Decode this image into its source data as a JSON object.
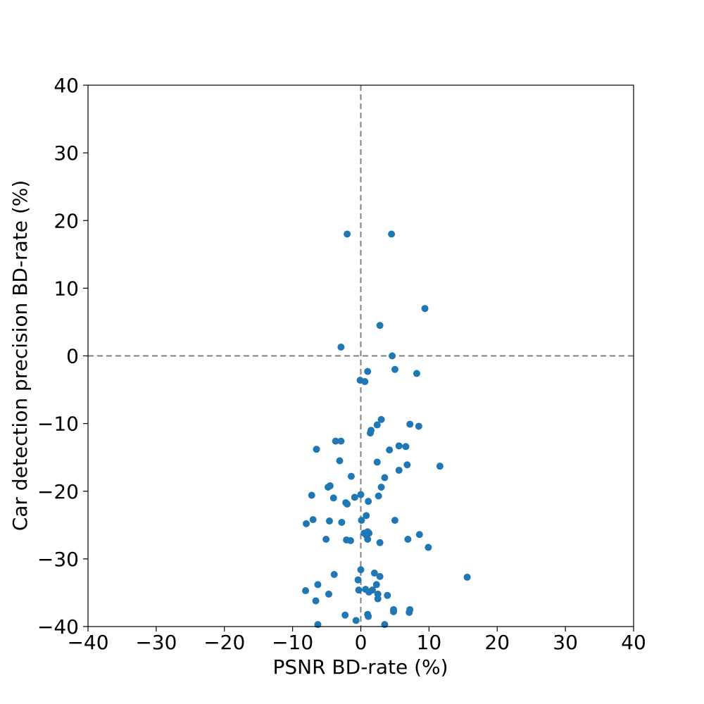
{
  "chart_data": {
    "type": "scatter",
    "title": "",
    "xlabel": "PSNR BD-rate (%)",
    "ylabel": "Car detection precision BD-rate (%)",
    "xlim": [
      -40,
      40
    ],
    "ylim": [
      -40,
      40
    ],
    "xticks": [
      -40,
      -30,
      -20,
      -10,
      0,
      10,
      20,
      30,
      40
    ],
    "yticks": [
      -40,
      -30,
      -20,
      -10,
      0,
      10,
      20,
      30,
      40
    ],
    "xtick_labels": [
      "−40",
      "−30",
      "−20",
      "−10",
      "0",
      "10",
      "20",
      "30",
      "40"
    ],
    "ytick_labels": [
      "−40",
      "−30",
      "−20",
      "−10",
      "0",
      "10",
      "20",
      "30",
      "40"
    ],
    "grid": false,
    "reference_lines": {
      "x": 0,
      "y": 0,
      "style": "dashed",
      "color": "#808080"
    },
    "marker_color": "#1f77b4",
    "points": [
      {
        "x": -2.0,
        "y": 18.0
      },
      {
        "x": 4.5,
        "y": 18.0
      },
      {
        "x": 9.4,
        "y": 7.0
      },
      {
        "x": 2.8,
        "y": 4.5
      },
      {
        "x": -2.9,
        "y": 1.3
      },
      {
        "x": 4.6,
        "y": 0.0
      },
      {
        "x": 1.0,
        "y": -2.3
      },
      {
        "x": 5.0,
        "y": -2.0
      },
      {
        "x": 8.2,
        "y": -2.6
      },
      {
        "x": -0.1,
        "y": -3.6
      },
      {
        "x": 0.6,
        "y": -3.8
      },
      {
        "x": 3.0,
        "y": -9.4
      },
      {
        "x": 2.4,
        "y": -10.2
      },
      {
        "x": 7.2,
        "y": -10.1
      },
      {
        "x": 8.5,
        "y": -10.4
      },
      {
        "x": 1.5,
        "y": -11.0
      },
      {
        "x": 1.4,
        "y": -11.4
      },
      {
        "x": -3.7,
        "y": -12.6
      },
      {
        "x": -2.9,
        "y": -12.6
      },
      {
        "x": 5.6,
        "y": -13.3
      },
      {
        "x": 6.6,
        "y": -13.4
      },
      {
        "x": 4.2,
        "y": -13.9
      },
      {
        "x": -6.5,
        "y": -13.8
      },
      {
        "x": -3.1,
        "y": -15.5
      },
      {
        "x": 2.4,
        "y": -15.7
      },
      {
        "x": 6.8,
        "y": -16.1
      },
      {
        "x": 11.6,
        "y": -16.3
      },
      {
        "x": 5.6,
        "y": -16.9
      },
      {
        "x": 3.5,
        "y": -18.0
      },
      {
        "x": -1.4,
        "y": -17.8
      },
      {
        "x": -4.5,
        "y": -19.2
      },
      {
        "x": -4.8,
        "y": -19.4
      },
      {
        "x": 3.0,
        "y": -19.4
      },
      {
        "x": -7.2,
        "y": -20.6
      },
      {
        "x": 0.0,
        "y": -20.5
      },
      {
        "x": -0.9,
        "y": -20.9
      },
      {
        "x": -4.0,
        "y": -21.0
      },
      {
        "x": 2.6,
        "y": -20.7
      },
      {
        "x": 1.1,
        "y": -21.5
      },
      {
        "x": -2.2,
        "y": -21.7
      },
      {
        "x": -2.0,
        "y": -21.9
      },
      {
        "x": 0.8,
        "y": -23.6
      },
      {
        "x": -7.0,
        "y": -24.2
      },
      {
        "x": -8.0,
        "y": -24.8
      },
      {
        "x": -4.6,
        "y": -24.4
      },
      {
        "x": -2.8,
        "y": -24.6
      },
      {
        "x": 0.1,
        "y": -24.3
      },
      {
        "x": 5.0,
        "y": -24.3
      },
      {
        "x": 0.5,
        "y": -26.2
      },
      {
        "x": 1.0,
        "y": -26.0
      },
      {
        "x": 1.2,
        "y": -26.2
      },
      {
        "x": 0.8,
        "y": -26.5
      },
      {
        "x": 8.6,
        "y": -26.4
      },
      {
        "x": -5.1,
        "y": -27.1
      },
      {
        "x": -2.1,
        "y": -27.2
      },
      {
        "x": -1.5,
        "y": -27.3
      },
      {
        "x": 1.0,
        "y": -27.1
      },
      {
        "x": 2.8,
        "y": -27.6
      },
      {
        "x": 6.9,
        "y": -27.1
      },
      {
        "x": 9.9,
        "y": -28.3
      },
      {
        "x": 0.0,
        "y": -31.6
      },
      {
        "x": -3.9,
        "y": -32.3
      },
      {
        "x": 2.0,
        "y": -32.1
      },
      {
        "x": 2.8,
        "y": -32.6
      },
      {
        "x": 15.6,
        "y": -32.7
      },
      {
        "x": -0.4,
        "y": -33.1
      },
      {
        "x": -6.3,
        "y": -33.8
      },
      {
        "x": 2.3,
        "y": -33.8
      },
      {
        "x": 0.7,
        "y": -34.5
      },
      {
        "x": 1.7,
        "y": -34.6
      },
      {
        "x": -0.3,
        "y": -34.6
      },
      {
        "x": -8.1,
        "y": -34.7
      },
      {
        "x": 1.2,
        "y": -34.9
      },
      {
        "x": -4.7,
        "y": -35.2
      },
      {
        "x": 2.5,
        "y": -35.2
      },
      {
        "x": 3.9,
        "y": -35.4
      },
      {
        "x": 2.5,
        "y": -35.9
      },
      {
        "x": -6.6,
        "y": -36.2
      },
      {
        "x": 4.8,
        "y": -37.5
      },
      {
        "x": 7.2,
        "y": -37.5
      },
      {
        "x": 4.8,
        "y": -37.8
      },
      {
        "x": 7.1,
        "y": -37.9
      },
      {
        "x": -2.3,
        "y": -38.3
      },
      {
        "x": 1.0,
        "y": -38.2
      },
      {
        "x": 1.1,
        "y": -38.5
      },
      {
        "x": -0.7,
        "y": -39.1
      },
      {
        "x": -6.3,
        "y": -39.7
      },
      {
        "x": 3.5,
        "y": -39.7
      }
    ]
  }
}
